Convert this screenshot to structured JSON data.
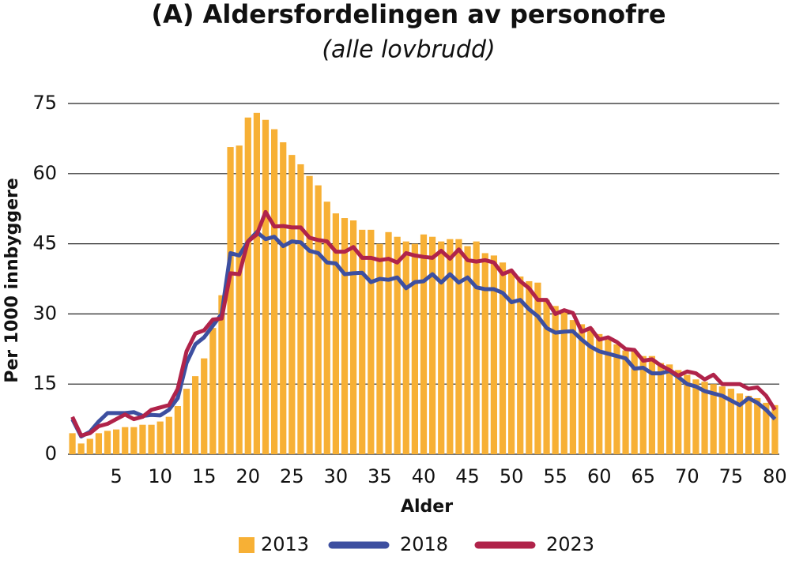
{
  "chart_data": {
    "type": "bar",
    "title": "(A) Aldersfordelingen av personofre",
    "subtitle": "(alle lovbrudd)",
    "x_label": "Alder",
    "y_label": "Per 1000 innbyggere",
    "x": [
      0,
      1,
      2,
      3,
      4,
      5,
      6,
      7,
      8,
      9,
      10,
      11,
      12,
      13,
      14,
      15,
      16,
      17,
      18,
      19,
      20,
      21,
      22,
      23,
      24,
      25,
      26,
      27,
      28,
      29,
      30,
      31,
      32,
      33,
      34,
      35,
      36,
      37,
      38,
      39,
      40,
      41,
      42,
      43,
      44,
      45,
      46,
      47,
      48,
      49,
      50,
      51,
      52,
      53,
      54,
      55,
      56,
      57,
      58,
      59,
      60,
      61,
      62,
      63,
      64,
      65,
      66,
      67,
      68,
      69,
      70,
      71,
      72,
      73,
      74,
      75,
      76,
      77,
      78,
      79,
      80
    ],
    "xlim": [
      -0.5,
      80.5
    ],
    "xticks": [
      5,
      10,
      15,
      20,
      25,
      30,
      35,
      40,
      45,
      50,
      55,
      60,
      65,
      70,
      75,
      80
    ],
    "ylim": [
      0,
      75
    ],
    "yticks": [
      0,
      15,
      30,
      45,
      60,
      75
    ],
    "grid": true,
    "legend": "bottom",
    "series": [
      {
        "name": "2013",
        "type": "bar",
        "color": "#f7b035",
        "values": [
          4.5,
          2.3,
          3.3,
          4.5,
          5,
          5.3,
          5.8,
          5.8,
          6.3,
          6.3,
          7,
          8,
          10.3,
          14,
          16.7,
          20.5,
          27,
          34,
          65.7,
          66,
          72,
          73,
          71.5,
          69.5,
          66.7,
          64,
          62,
          59.5,
          57.5,
          54,
          51.5,
          50.5,
          50,
          48,
          48,
          45,
          47.5,
          46.5,
          45.5,
          45,
          47,
          46.5,
          45.5,
          46,
          46,
          44.5,
          45.5,
          43,
          42.5,
          41,
          39,
          38,
          37,
          36.7,
          33,
          31.7,
          31,
          28.7,
          27.8,
          27,
          25.7,
          24.5,
          23.5,
          22.2,
          22,
          21,
          21,
          19.5,
          19.2,
          18,
          17,
          16,
          15.5,
          15,
          14.5,
          14,
          13,
          12.5,
          12,
          11,
          10.5
        ]
      },
      {
        "name": "2018",
        "type": "line",
        "color": "#3d4fa0",
        "values": [
          7.5,
          3.8,
          4.8,
          7,
          8.8,
          8.8,
          8.8,
          9,
          8.2,
          8.4,
          8.3,
          9.5,
          12,
          19.5,
          23.5,
          25,
          27.5,
          30,
          43,
          42.5,
          45.5,
          47.5,
          46,
          46.5,
          44.5,
          45.5,
          45.3,
          43.5,
          43,
          41,
          40.8,
          38.5,
          38.7,
          38.8,
          36.8,
          37.5,
          37.3,
          37.8,
          35.5,
          36.8,
          37,
          38.5,
          36.7,
          38.5,
          36.7,
          37.8,
          35.7,
          35.3,
          35.3,
          34.5,
          32.5,
          33,
          31,
          29.5,
          27,
          26,
          26.2,
          26.3,
          24.5,
          23,
          22,
          21.5,
          21,
          20.5,
          18.3,
          18.5,
          17.3,
          17.3,
          17.8,
          16.5,
          15,
          14.5,
          13.5,
          13,
          12.5,
          11.5,
          10.5,
          12,
          11,
          9.5,
          7.5
        ]
      },
      {
        "name": "2023",
        "type": "line",
        "color": "#b0234a",
        "values": [
          8,
          4,
          4.5,
          6,
          6.5,
          7.5,
          8.5,
          7.5,
          8,
          9.5,
          10,
          10.5,
          14,
          22,
          25.8,
          26.5,
          28.8,
          29,
          38.7,
          38.5,
          45.5,
          47,
          51.8,
          48.7,
          48.8,
          48.5,
          48.5,
          46.3,
          45.8,
          45.5,
          43.3,
          43.3,
          44.3,
          42,
          42,
          41.5,
          41.8,
          41,
          43,
          42.5,
          42.2,
          42,
          43.5,
          41.8,
          43.8,
          41.5,
          41.2,
          41.5,
          41,
          38.5,
          39.3,
          37,
          35.5,
          33,
          33,
          30,
          30.8,
          30.2,
          26.2,
          27,
          24.5,
          25,
          24,
          22.5,
          22.3,
          20,
          20.3,
          19,
          18,
          16.8,
          17.7,
          17.3,
          16,
          17,
          15,
          15,
          15,
          14,
          14.3,
          12.5,
          9.5
        ]
      }
    ]
  }
}
